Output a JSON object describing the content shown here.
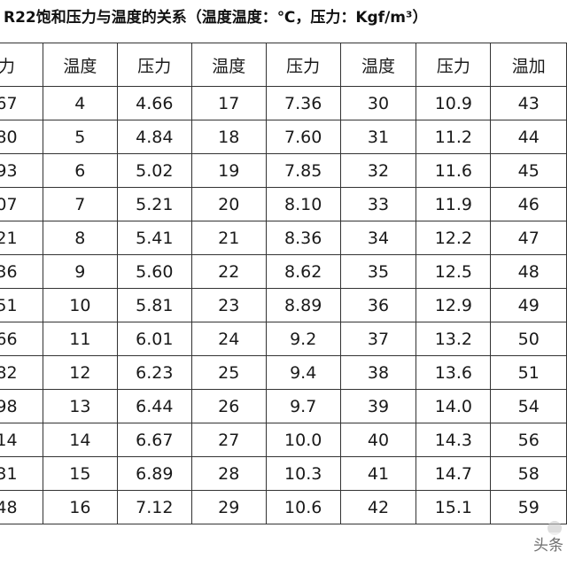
{
  "title": "R22饱和压力与温度的关系（温度温度：℃，压力：Kgf/m³）",
  "header": [
    "力",
    "温度",
    "压力",
    "温度",
    "压力",
    "温度",
    "压力",
    "温加"
  ],
  "rows": [
    [
      "67",
      "4",
      "4.66",
      "17",
      "7.36",
      "30",
      "10.9",
      "43"
    ],
    [
      "80",
      "5",
      "4.84",
      "18",
      "7.60",
      "31",
      "11.2",
      "44"
    ],
    [
      "93",
      "6",
      "5.02",
      "19",
      "7.85",
      "32",
      "11.6",
      "45"
    ],
    [
      "07",
      "7",
      "5.21",
      "20",
      "8.10",
      "33",
      "11.9",
      "46"
    ],
    [
      "21",
      "8",
      "5.41",
      "21",
      "8.36",
      "34",
      "12.2",
      "47"
    ],
    [
      "36",
      "9",
      "5.60",
      "22",
      "8.62",
      "35",
      "12.5",
      "48"
    ],
    [
      "51",
      "10",
      "5.81",
      "23",
      "8.89",
      "36",
      "12.9",
      "49"
    ],
    [
      "66",
      "11",
      "6.01",
      "24",
      "9.2",
      "37",
      "13.2",
      "50"
    ],
    [
      "82",
      "12",
      "6.23",
      "25",
      "9.4",
      "38",
      "13.6",
      "51"
    ],
    [
      "98",
      "13",
      "6.44",
      "26",
      "9.7",
      "39",
      "14.0",
      "54"
    ],
    [
      "14",
      "14",
      "6.67",
      "27",
      "10.0",
      "40",
      "14.3",
      "56"
    ],
    [
      "31",
      "15",
      "6.89",
      "28",
      "10.3",
      "41",
      "14.7",
      "58"
    ],
    [
      "48",
      "16",
      "7.12",
      "29",
      "10.6",
      "42",
      "15.1",
      "59"
    ]
  ],
  "watermark": {
    "text": "头条"
  }
}
